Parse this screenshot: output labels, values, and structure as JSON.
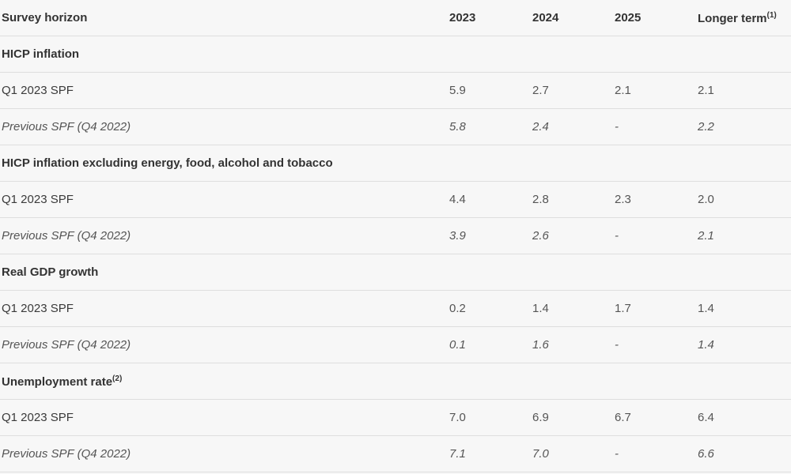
{
  "header": {
    "columns": [
      "Survey horizon",
      "2023",
      "2024",
      "2025",
      "Longer term"
    ],
    "note": "(1)"
  },
  "sections": [
    {
      "title": "HICP inflation",
      "rows": [
        [
          "Q1 2023 SPF",
          "5.9",
          "2.7",
          "2.1",
          "2.1"
        ],
        [
          "Previous SPF (Q4 2022)",
          "5.8",
          "2.4",
          "-",
          "2.2"
        ]
      ]
    },
    {
      "title": "HICP inflation excluding energy, food, alcohol and tobacco",
      "rows": [
        [
          "Q1 2023 SPF",
          "4.4",
          "2.8",
          "2.3",
          "2.0"
        ],
        [
          "Previous SPF (Q4 2022)",
          "3.9",
          "2.6",
          "-",
          "2.1"
        ]
      ]
    },
    {
      "title": "Real GDP growth",
      "rows": [
        [
          "Q1 2023 SPF",
          "0.2",
          "1.4",
          "1.7",
          "1.4"
        ],
        [
          "Previous SPF (Q4 2022)",
          "0.1",
          "1.6",
          "-",
          "1.4"
        ]
      ]
    },
    {
      "title": "Unemployment rate",
      "note": "(2)",
      "rows": [
        [
          "Q1 2023 SPF",
          "7.0",
          "6.9",
          "6.7",
          "6.4"
        ],
        [
          "Previous SPF (Q4 2022)",
          "7.1",
          "7.0",
          "-",
          "6.6"
        ]
      ]
    }
  ]
}
